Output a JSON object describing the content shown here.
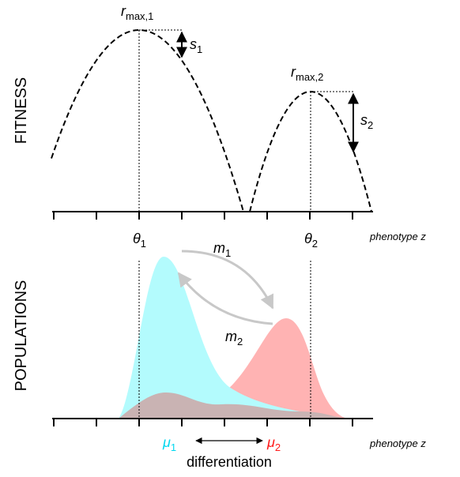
{
  "fitness": {
    "axis_label": "FITNESS",
    "x_axis_label": "phenotype z",
    "peak_1": {
      "symbol": "r",
      "subscript": "max,1"
    },
    "peak_2": {
      "symbol": "r",
      "subscript": "max,2"
    },
    "selection_1": {
      "symbol": "s",
      "subscript": "1"
    },
    "selection_2": {
      "symbol": "s",
      "subscript": "2"
    }
  },
  "populations": {
    "axis_label": "POPULATIONS",
    "x_axis_label": "phenotype z",
    "optimum_1": {
      "symbol": "θ",
      "subscript": "1"
    },
    "optimum_2": {
      "symbol": "θ",
      "subscript": "2"
    },
    "migration_1": {
      "symbol": "m",
      "subscript": "1"
    },
    "migration_2": {
      "symbol": "m",
      "subscript": "2"
    },
    "mean_1": {
      "symbol": "μ",
      "subscript": "1"
    },
    "mean_2": {
      "symbol": "μ",
      "subscript": "2"
    },
    "differentiation_label": "differentiation"
  }
}
